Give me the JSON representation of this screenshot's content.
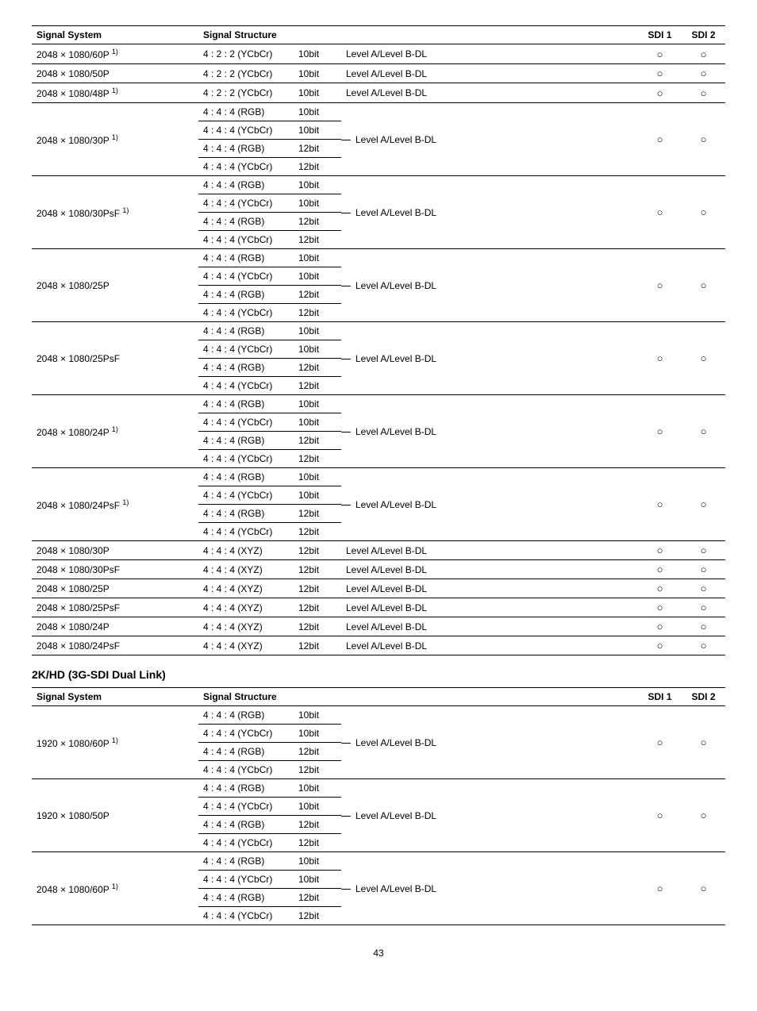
{
  "page_number": "43",
  "circle": "○",
  "section2_title": "2K/HD (3G-SDI Dual Link)",
  "headers": {
    "signal_system": "Signal System",
    "signal_structure": "Signal Structure",
    "sdi1": "SDI 1",
    "sdi2": "SDI 2"
  },
  "level_text": "Level A/Level B-DL",
  "bits": {
    "b10": "10bit",
    "b12": "12bit"
  },
  "formats": {
    "y422": "4 : 2 : 2 (YCbCr)",
    "rgb444": "4 : 4 : 4 (RGB)",
    "y444": "4 : 4 : 4 (YCbCr)",
    "xyz444": "4 : 4 : 4 (XYZ)"
  },
  "t1_simple": [
    {
      "sys_base": "2048 × 1080/60P",
      "sys_sup": "1)"
    },
    {
      "sys_base": "2048 × 1080/50P",
      "sys_sup": ""
    },
    {
      "sys_base": "2048 × 1080/48P",
      "sys_sup": "1)"
    }
  ],
  "t1_groups": [
    {
      "sys_base": "2048 × 1080/30P",
      "sys_sup": "1)"
    },
    {
      "sys_base": "2048 × 1080/30PsF",
      "sys_sup": "1)"
    },
    {
      "sys_base": "2048 × 1080/25P",
      "sys_sup": ""
    },
    {
      "sys_base": "2048 × 1080/25PsF",
      "sys_sup": ""
    },
    {
      "sys_base": "2048 × 1080/24P",
      "sys_sup": "1)"
    },
    {
      "sys_base": "2048 × 1080/24PsF",
      "sys_sup": "1)"
    }
  ],
  "t1_xyz": [
    {
      "sys": "2048 × 1080/30P"
    },
    {
      "sys": "2048 × 1080/30PsF"
    },
    {
      "sys": "2048 × 1080/25P"
    },
    {
      "sys": "2048 × 1080/25PsF"
    },
    {
      "sys": "2048 × 1080/24P"
    },
    {
      "sys": "2048 × 1080/24PsF"
    }
  ],
  "t2_groups": [
    {
      "sys_base": "1920 × 1080/60P",
      "sys_sup": "1)"
    },
    {
      "sys_base": "1920 × 1080/50P",
      "sys_sup": ""
    },
    {
      "sys_base": "2048 × 1080/60P",
      "sys_sup": "1)"
    }
  ]
}
